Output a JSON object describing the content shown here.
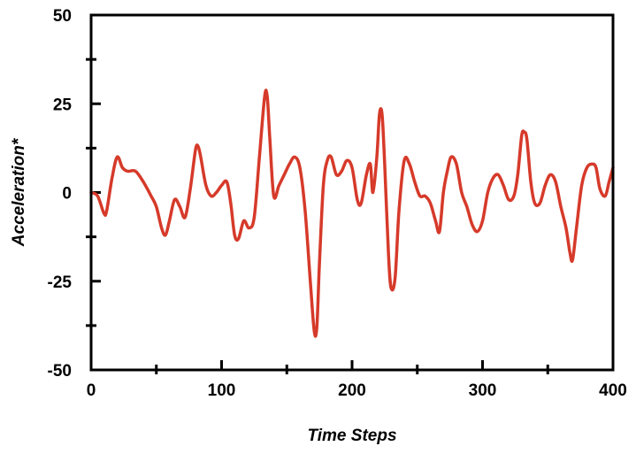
{
  "chart_data": {
    "type": "line",
    "title": "",
    "xlabel": "Time Steps",
    "ylabel": "Acceleration*",
    "xlim": [
      0,
      400
    ],
    "ylim": [
      -50,
      50
    ],
    "x_ticks": [
      0,
      100,
      200,
      300,
      400
    ],
    "x_minor_ticks": [
      50,
      150,
      250,
      350
    ],
    "y_ticks": [
      -50,
      -25,
      0,
      25,
      50
    ],
    "y_minor_ticks": [
      -37.5,
      -12.5,
      12.5,
      37.5
    ],
    "grid": false,
    "legend": "none",
    "series": [
      {
        "color": "#d63a2a",
        "x": [
          0,
          5,
          10,
          12,
          16,
          20,
          24,
          28,
          34,
          40,
          46,
          50,
          54,
          57,
          60,
          64,
          68,
          72,
          76,
          80,
          82,
          84,
          88,
          92,
          96,
          100,
          104,
          107,
          110,
          113,
          117,
          121,
          125,
          129,
          133,
          135,
          137,
          140,
          144,
          148,
          152,
          156,
          160,
          164,
          168,
          171,
          173,
          175,
          178,
          181,
          184,
          188,
          192,
          196,
          200,
          204,
          207,
          211,
          214,
          216,
          219,
          221,
          223,
          225,
          228,
          230,
          233,
          236,
          240,
          244,
          248,
          252,
          256,
          260,
          264,
          267,
          270,
          273,
          276,
          280,
          284,
          288,
          292,
          296,
          300,
          304,
          308,
          312,
          316,
          320,
          324,
          327,
          330,
          332,
          334,
          337,
          340,
          344,
          348,
          352,
          356,
          360,
          364,
          367,
          369,
          372,
          376,
          380,
          384,
          387,
          390,
          394,
          397,
          400
        ],
        "y": [
          0,
          -1,
          -6,
          -5,
          4,
          10,
          7,
          6,
          6,
          3,
          -1,
          -4,
          -10,
          -12,
          -8,
          -2,
          -4,
          -7,
          1,
          12,
          13,
          10,
          2,
          -1,
          0,
          2,
          3,
          -3,
          -12,
          -13,
          -8,
          -10,
          -7,
          10,
          27,
          27,
          15,
          -1,
          2,
          5,
          8,
          10,
          7,
          -5,
          -25,
          -39,
          -38,
          -20,
          2,
          9,
          10,
          5,
          6,
          9,
          7,
          -2,
          -3,
          5,
          8,
          0,
          10,
          22,
          22,
          8,
          -18,
          -27,
          -24,
          -5,
          9,
          8,
          3,
          -1,
          -1,
          -3,
          -8,
          -11,
          0,
          6,
          10,
          8,
          0,
          -4,
          -9,
          -11,
          -8,
          0,
          4,
          5,
          2,
          -2,
          -1,
          5,
          16,
          17,
          15,
          3,
          -3,
          -3,
          2,
          5,
          3,
          -4,
          -10,
          -17,
          -19,
          -10,
          2,
          7,
          8,
          7,
          1,
          -1,
          3,
          7
        ]
      }
    ]
  }
}
